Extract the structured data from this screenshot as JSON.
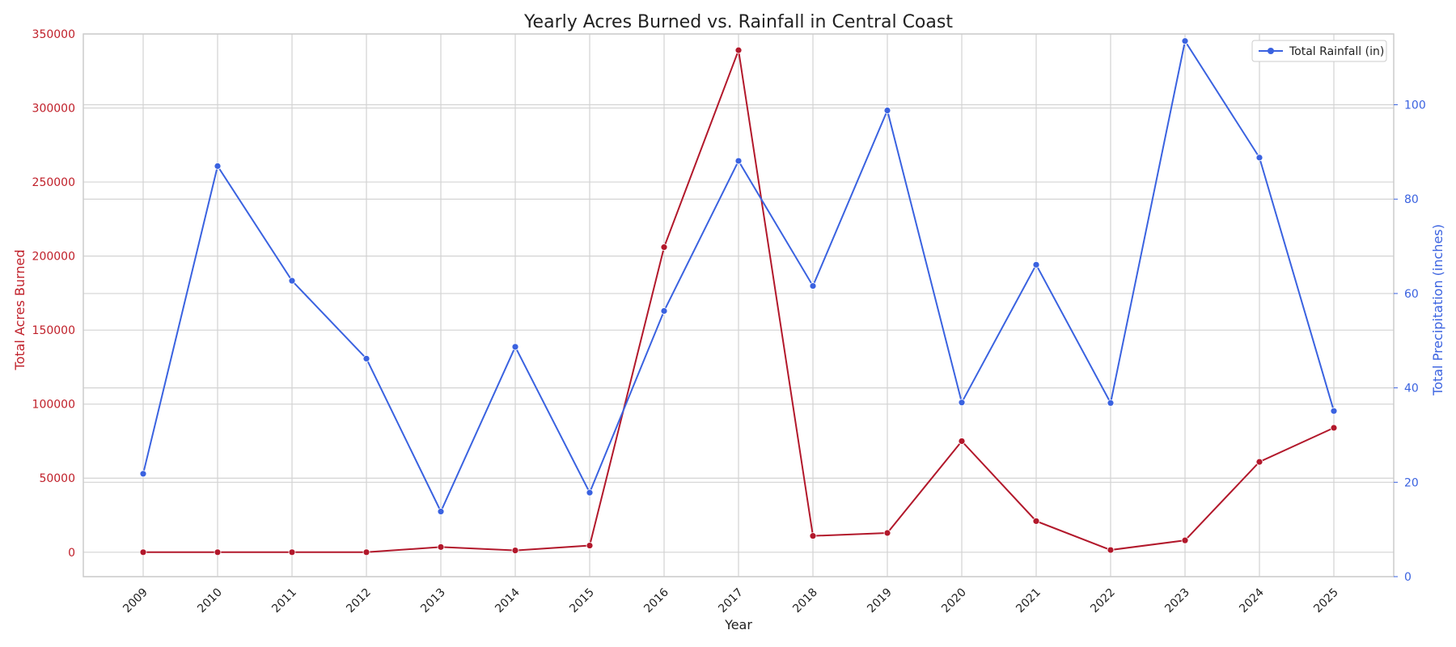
{
  "chart_data": {
    "type": "line",
    "title": "Yearly Acres Burned vs. Rainfall in Central Coast",
    "xlabel": "Year",
    "ylabel_left": "Total Acres Burned",
    "ylabel_right": "Total Precipitation (inches)",
    "categories": [
      "2009",
      "2010",
      "2011",
      "2012",
      "2013",
      "2014",
      "2015",
      "2016",
      "2017",
      "2018",
      "2019",
      "2020",
      "2021",
      "2022",
      "2023",
      "2024",
      "2025"
    ],
    "ylim_left": [
      -16500,
      350000
    ],
    "ylim_right": [
      0,
      115
    ],
    "yticks_left": [
      0,
      50000,
      100000,
      150000,
      200000,
      250000,
      300000,
      350000
    ],
    "yticks_right": [
      0,
      20,
      40,
      60,
      80,
      100
    ],
    "grid": true,
    "legend_position": "top-right",
    "series": [
      {
        "name": "",
        "axis": "left",
        "color": "#b2182b",
        "values": [
          0,
          0,
          0,
          0,
          3500,
          1200,
          4500,
          206000,
          339000,
          11000,
          13000,
          75000,
          21000,
          1500,
          8000,
          61000,
          84000
        ]
      },
      {
        "name": "Total Rainfall (in)",
        "axis": "right",
        "color": "#3a62e0",
        "values": [
          21.8,
          87.0,
          62.7,
          46.2,
          13.8,
          48.7,
          17.8,
          56.3,
          88.1,
          61.6,
          98.8,
          36.9,
          66.1,
          36.8,
          113.5,
          88.8,
          35.1
        ]
      }
    ]
  }
}
